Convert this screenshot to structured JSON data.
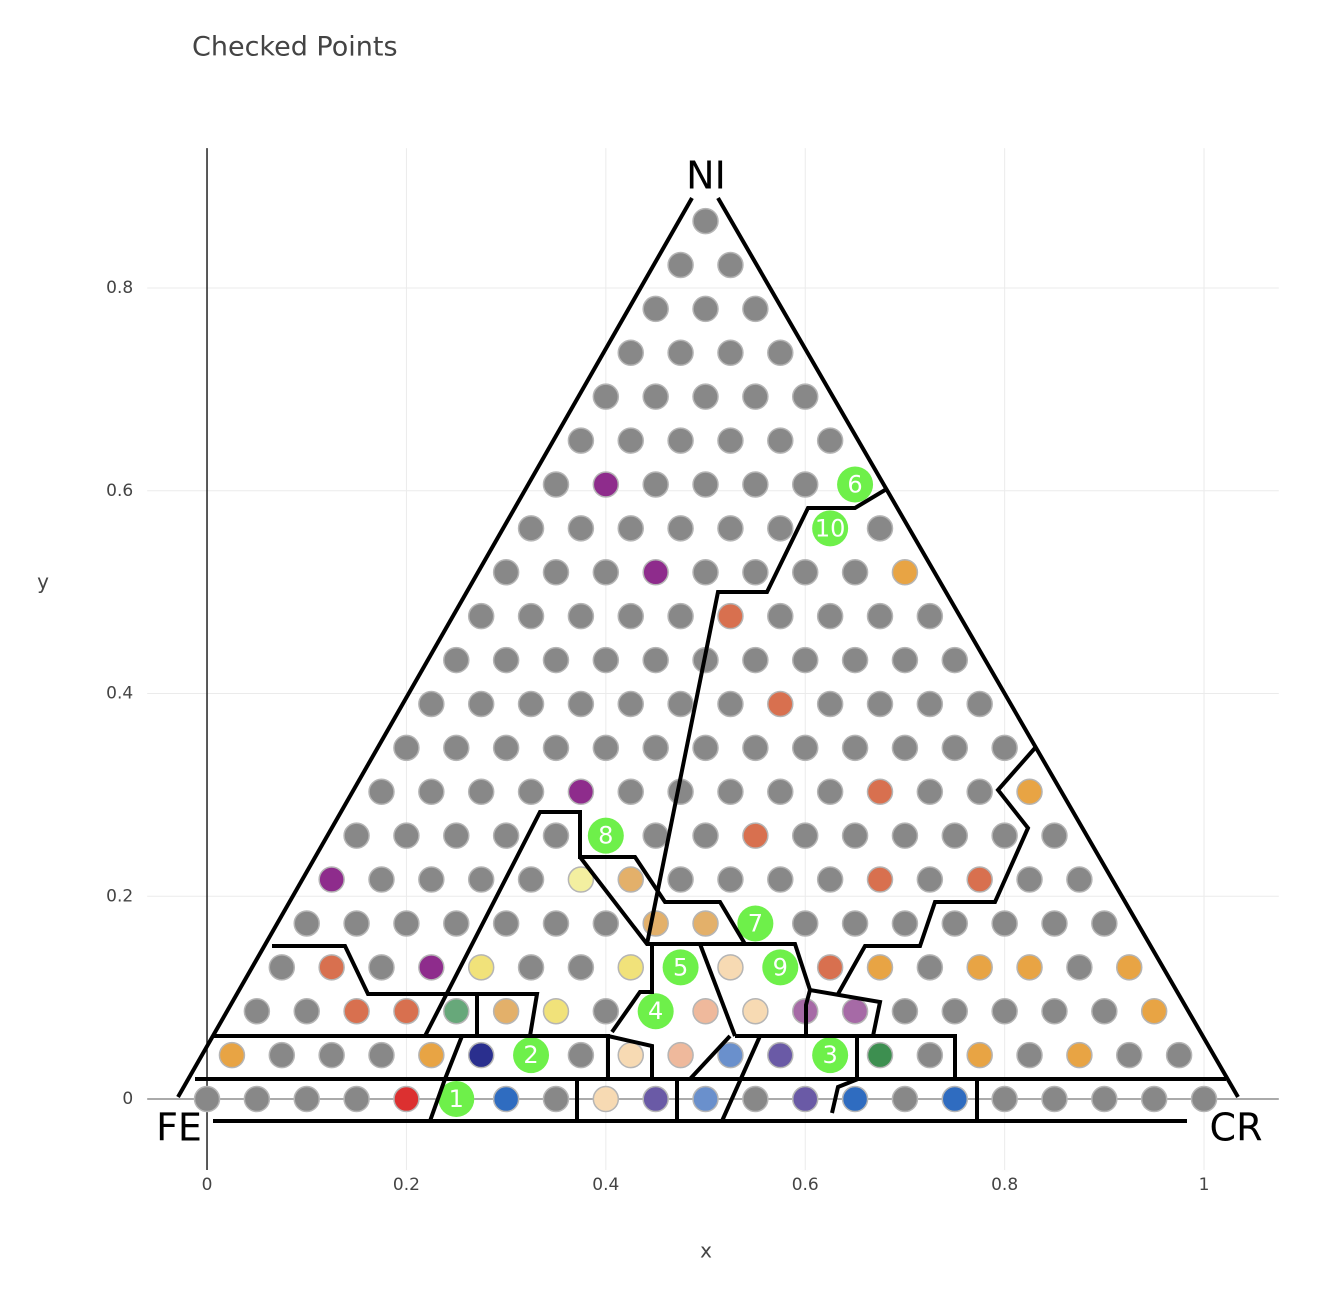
{
  "chart_data": {
    "type": "scatter",
    "title": "Checked Points",
    "x_label": "x",
    "y_label": "y",
    "xlim": [
      -0.06,
      1.075
    ],
    "ylim": [
      -0.07,
      0.938
    ],
    "xticks": [
      0,
      0.2,
      0.4,
      0.6,
      0.8,
      1
    ],
    "yticks": [
      0,
      0.2,
      0.4,
      0.6,
      0.8
    ],
    "grid": true,
    "zeroline": true,
    "annotations": [
      "NI",
      "FE",
      "CR"
    ],
    "series": [
      {
        "color": "#888888",
        "x": [
          0,
          0.05,
          0.1,
          0.15,
          0.35,
          0.55,
          0.7,
          0.8,
          0.85,
          0.9,
          0.95,
          1,
          0.075,
          0.125,
          0.175,
          0.375,
          0.725,
          0.825,
          0.925,
          0.975,
          0.05,
          0.1,
          0.4,
          0.7,
          0.75,
          0.8,
          0.85,
          0.9,
          0.075,
          0.175,
          0.325,
          0.375,
          0.725,
          0.875,
          0.1,
          0.15,
          0.2,
          0.25,
          0.3,
          0.35,
          0.4,
          0.6,
          0.65,
          0.7,
          0.75,
          0.8,
          0.85,
          0.9,
          0.175,
          0.225,
          0.275,
          0.325,
          0.475,
          0.525,
          0.575,
          0.625,
          0.725,
          0.825,
          0.875,
          0.15,
          0.2,
          0.25,
          0.3,
          0.35,
          0.45,
          0.5,
          0.6,
          0.65,
          0.7,
          0.75,
          0.8,
          0.85,
          0.175,
          0.225,
          0.275,
          0.325,
          0.425,
          0.475,
          0.525,
          0.575,
          0.625,
          0.725,
          0.775,
          0.2,
          0.25,
          0.3,
          0.35,
          0.4,
          0.45,
          0.5,
          0.55,
          0.6,
          0.65,
          0.7,
          0.75,
          0.8,
          0.225,
          0.275,
          0.325,
          0.375,
          0.425,
          0.475,
          0.525,
          0.625,
          0.675,
          0.725,
          0.775,
          0.25,
          0.3,
          0.35,
          0.4,
          0.45,
          0.5,
          0.55,
          0.6,
          0.65,
          0.7,
          0.75,
          0.275,
          0.325,
          0.375,
          0.425,
          0.475,
          0.575,
          0.625,
          0.675,
          0.725,
          0.3,
          0.35,
          0.4,
          0.5,
          0.55,
          0.6,
          0.65,
          0.325,
          0.375,
          0.425,
          0.475,
          0.525,
          0.575,
          0.675,
          0.35,
          0.45,
          0.5,
          0.55,
          0.6,
          0.375,
          0.425,
          0.475,
          0.525,
          0.575,
          0.625,
          0.4,
          0.45,
          0.5,
          0.55,
          0.6,
          0.425,
          0.475,
          0.525,
          0.575,
          0.45,
          0.5,
          0.55,
          0.475,
          0.525,
          0.5
        ],
        "y": [
          0,
          0,
          0,
          0,
          0,
          0,
          0,
          0,
          0,
          0,
          0,
          0,
          0.0433,
          0.0433,
          0.0433,
          0.0433,
          0.0433,
          0.0433,
          0.0433,
          0.0433,
          0.0866,
          0.0866,
          0.0866,
          0.0866,
          0.0866,
          0.0866,
          0.0866,
          0.0866,
          0.1299,
          0.1299,
          0.1299,
          0.1299,
          0.1299,
          0.1299,
          0.1732,
          0.1732,
          0.1732,
          0.1732,
          0.1732,
          0.1732,
          0.1732,
          0.1732,
          0.1732,
          0.1732,
          0.1732,
          0.1732,
          0.1732,
          0.1732,
          0.2165,
          0.2165,
          0.2165,
          0.2165,
          0.2165,
          0.2165,
          0.2165,
          0.2165,
          0.2165,
          0.2165,
          0.2165,
          0.2598,
          0.2598,
          0.2598,
          0.2598,
          0.2598,
          0.2598,
          0.2598,
          0.2598,
          0.2598,
          0.2598,
          0.2598,
          0.2598,
          0.2598,
          0.3031,
          0.3031,
          0.3031,
          0.3031,
          0.3031,
          0.3031,
          0.3031,
          0.3031,
          0.3031,
          0.3031,
          0.3031,
          0.3464,
          0.3464,
          0.3464,
          0.3464,
          0.3464,
          0.3464,
          0.3464,
          0.3464,
          0.3464,
          0.3464,
          0.3464,
          0.3464,
          0.3464,
          0.3897,
          0.3897,
          0.3897,
          0.3897,
          0.3897,
          0.3897,
          0.3897,
          0.3897,
          0.3897,
          0.3897,
          0.3897,
          0.433,
          0.433,
          0.433,
          0.433,
          0.433,
          0.433,
          0.433,
          0.433,
          0.433,
          0.433,
          0.433,
          0.4763,
          0.4763,
          0.4763,
          0.4763,
          0.4763,
          0.4763,
          0.4763,
          0.4763,
          0.4763,
          0.5196,
          0.5196,
          0.5196,
          0.5196,
          0.5196,
          0.5196,
          0.5196,
          0.5629,
          0.5629,
          0.5629,
          0.5629,
          0.5629,
          0.5629,
          0.5629,
          0.6062,
          0.6062,
          0.6062,
          0.6062,
          0.6062,
          0.6495,
          0.6495,
          0.6495,
          0.6495,
          0.6495,
          0.6495,
          0.6928,
          0.6928,
          0.6928,
          0.6928,
          0.6928,
          0.7361,
          0.7361,
          0.7361,
          0.7361,
          0.7794,
          0.7794,
          0.7794,
          0.8227,
          0.8227,
          0.866
        ]
      },
      {
        "color": "#dc3030",
        "x": [
          0.2
        ],
        "y": [
          0
        ]
      },
      {
        "color": "#2f6cc0",
        "x": [
          0.3,
          0.65,
          0.75
        ],
        "y": [
          0,
          0,
          0
        ]
      },
      {
        "color": "#f7dab3",
        "x": [
          0.4,
          0.425,
          0.55,
          0.525
        ],
        "y": [
          0,
          0.0433,
          0.0866,
          0.1299
        ]
      },
      {
        "color": "#6a5aa6",
        "x": [
          0.45,
          0.6,
          0.575
        ],
        "y": [
          0,
          0,
          0.0433
        ]
      },
      {
        "color": "#6a90cc",
        "x": [
          0.5,
          0.525
        ],
        "y": [
          0,
          0.0433
        ]
      },
      {
        "color": "#e8a444",
        "x": [
          0.025,
          0.225,
          0.775,
          0.875,
          0.95,
          0.675,
          0.775,
          0.825,
          0.925,
          0.825,
          0.7
        ],
        "y": [
          0.0433,
          0.0433,
          0.0433,
          0.0433,
          0.0866,
          0.1299,
          0.1299,
          0.1299,
          0.1299,
          0.3031,
          0.5196
        ]
      },
      {
        "color": "#2a2f8e",
        "x": [
          0.275
        ],
        "y": [
          0.0433
        ]
      },
      {
        "color": "#efb99c",
        "x": [
          0.475,
          0.5
        ],
        "y": [
          0.0433,
          0.0866
        ]
      },
      {
        "color": "#3d8f50",
        "x": [
          0.675
        ],
        "y": [
          0.0433
        ]
      },
      {
        "color": "#d8704f",
        "x": [
          0.15,
          0.2,
          0.125,
          0.625,
          0.675,
          0.775,
          0.55,
          0.675,
          0.575,
          0.525
        ],
        "y": [
          0.0866,
          0.0866,
          0.1299,
          0.1299,
          0.2165,
          0.2165,
          0.2598,
          0.3031,
          0.3897,
          0.4763
        ]
      },
      {
        "color": "#67a87a",
        "x": [
          0.25
        ],
        "y": [
          0.0866
        ]
      },
      {
        "color": "#e3b06a",
        "x": [
          0.3,
          0.45,
          0.5,
          0.425
        ],
        "y": [
          0.0866,
          0.1732,
          0.1732,
          0.2165
        ]
      },
      {
        "color": "#f1e27a",
        "x": [
          0.35,
          0.275,
          0.425
        ],
        "y": [
          0.0866,
          0.1299,
          0.1299
        ]
      },
      {
        "color": "#a66aa6",
        "x": [
          0.6,
          0.65
        ],
        "y": [
          0.0866,
          0.0866
        ]
      },
      {
        "color": "#8e2c8c",
        "x": [
          0.225,
          0.125,
          0.375,
          0.45,
          0.4
        ],
        "y": [
          0.1299,
          0.2165,
          0.3031,
          0.5196,
          0.6062
        ]
      },
      {
        "color": "#f3efa0",
        "x": [
          0.375
        ],
        "y": [
          0.2165
        ]
      },
      {
        "color": "#6ef04a",
        "x": [
          0.25,
          0.325,
          0.625,
          0.45,
          0.475,
          0.65,
          0.55,
          0.4,
          0.575,
          0.625
        ],
        "y": [
          0,
          0.0433,
          0.0433,
          0.0866,
          0.1299,
          0.6062,
          0.1732,
          0.2598,
          0.1299,
          0.5629
        ],
        "labels": [
          "1",
          "2",
          "3",
          "4",
          "5",
          "6",
          "7",
          "8",
          "9",
          "10"
        ]
      }
    ]
  }
}
